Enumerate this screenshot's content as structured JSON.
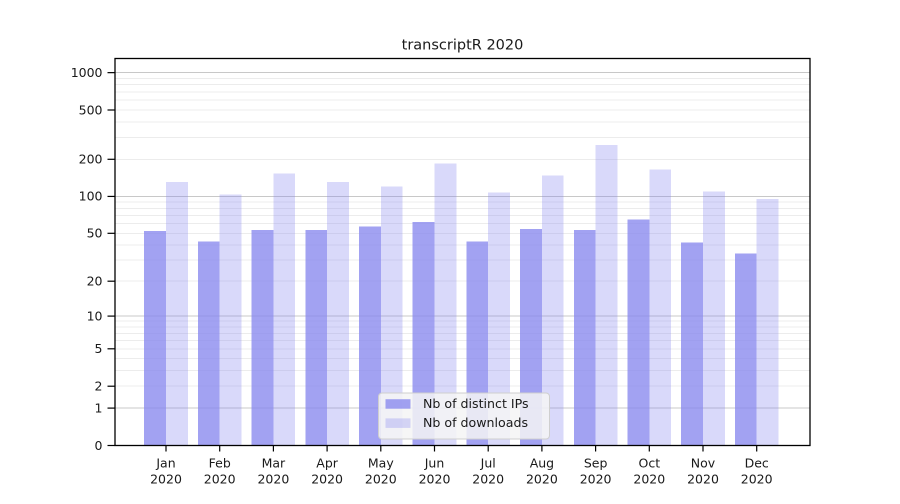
{
  "chart_data": {
    "type": "bar",
    "title": "transcriptR 2020",
    "categories": [
      "Jan",
      "Feb",
      "Mar",
      "Apr",
      "May",
      "Jun",
      "Jul",
      "Aug",
      "Sep",
      "Oct",
      "Nov",
      "Dec"
    ],
    "category_year": "2020",
    "series": [
      {
        "name": "Nb of distinct IPs",
        "color": "#8888ee",
        "fill_opacity": 0.78,
        "values": [
          52,
          43,
          53,
          53,
          57,
          62,
          43,
          54,
          53,
          65,
          42,
          34
        ]
      },
      {
        "name": "Nb of downloads",
        "color": "#8888ee",
        "fill_opacity": 0.32,
        "values": [
          131,
          104,
          153,
          131,
          120,
          185,
          108,
          148,
          260,
          166,
          110,
          95
        ]
      }
    ],
    "xlabel": "",
    "ylabel": "",
    "yscale": "symlog",
    "ylim": [
      0,
      1300
    ],
    "yticks": [
      0,
      1,
      2,
      5,
      10,
      20,
      50,
      100,
      200,
      500,
      1000
    ],
    "grid": {
      "on": true,
      "major_color": "#c8c8c8",
      "minor_color": "#ececec"
    },
    "legend": {
      "position": "lower center",
      "background": "#f5f5f5",
      "border": "#cfcfcf"
    },
    "spine_color": "#000000"
  }
}
